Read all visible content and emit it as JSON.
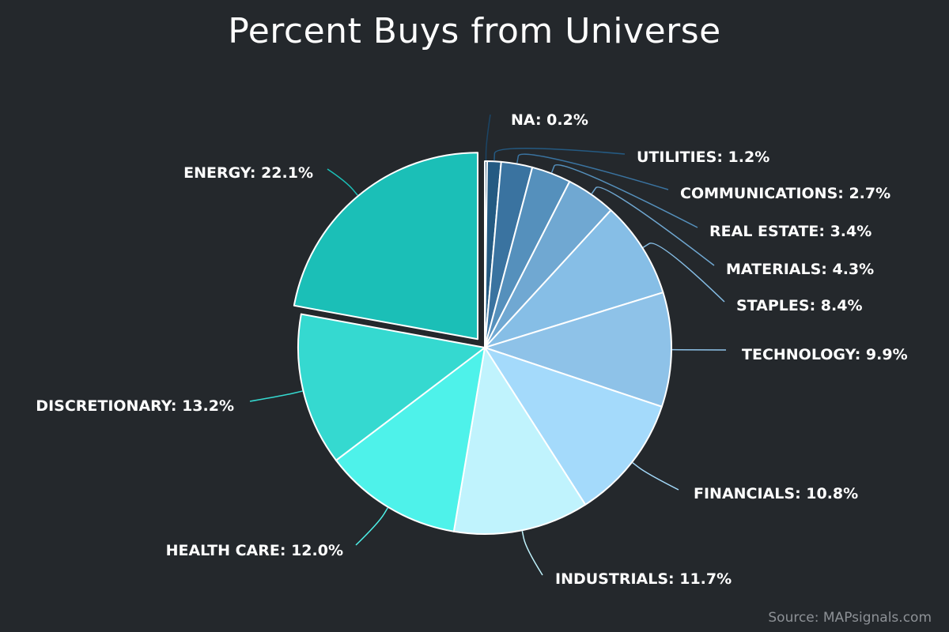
{
  "chart_data": {
    "type": "pie",
    "title": "Percent Buys from Universe",
    "source": "Source: MAPsignals.com",
    "unit": "%",
    "exploded": [
      "ENERGY"
    ],
    "slices": [
      {
        "label": "NA",
        "value": 0.2,
        "color": "#1b4566",
        "display": "NA: 0.2%"
      },
      {
        "label": "UTILITIES",
        "value": 1.2,
        "color": "#245a82",
        "display": "UTILITIES: 1.2%"
      },
      {
        "label": "COMMUNICATIONS",
        "value": 2.7,
        "color": "#3a73a0",
        "display": "COMMUNICATIONS: 2.7%"
      },
      {
        "label": "REAL ESTATE",
        "value": 3.4,
        "color": "#5590bc",
        "display": "REAL ESTATE: 3.4%"
      },
      {
        "label": "MATERIALS",
        "value": 4.3,
        "color": "#70a8d2",
        "display": "MATERIALS: 4.3%"
      },
      {
        "label": "STAPLES",
        "value": 8.4,
        "color": "#86bee6",
        "display": "STAPLES: 8.4%"
      },
      {
        "label": "TECHNOLOGY",
        "value": 9.9,
        "color": "#8ec2e8",
        "display": "TECHNOLOGY: 9.9%"
      },
      {
        "label": "FINANCIALS",
        "value": 10.8,
        "color": "#a4dafb",
        "display": "FINANCIALS: 10.8%"
      },
      {
        "label": "INDUSTRIALS",
        "value": 11.7,
        "color": "#c0f3fd",
        "display": "INDUSTRIALS: 11.7%"
      },
      {
        "label": "HEALTH CARE",
        "value": 12.0,
        "color": "#4ef2ea",
        "display": "HEALTH CARE: 12.0%"
      },
      {
        "label": "DISCRETIONARY",
        "value": 13.2,
        "color": "#35d9d0",
        "display": "DISCRETIONARY: 13.2%"
      },
      {
        "label": "ENERGY",
        "value": 22.1,
        "color": "#1bbfb7",
        "display": "ENERGY: 22.1%"
      }
    ]
  }
}
